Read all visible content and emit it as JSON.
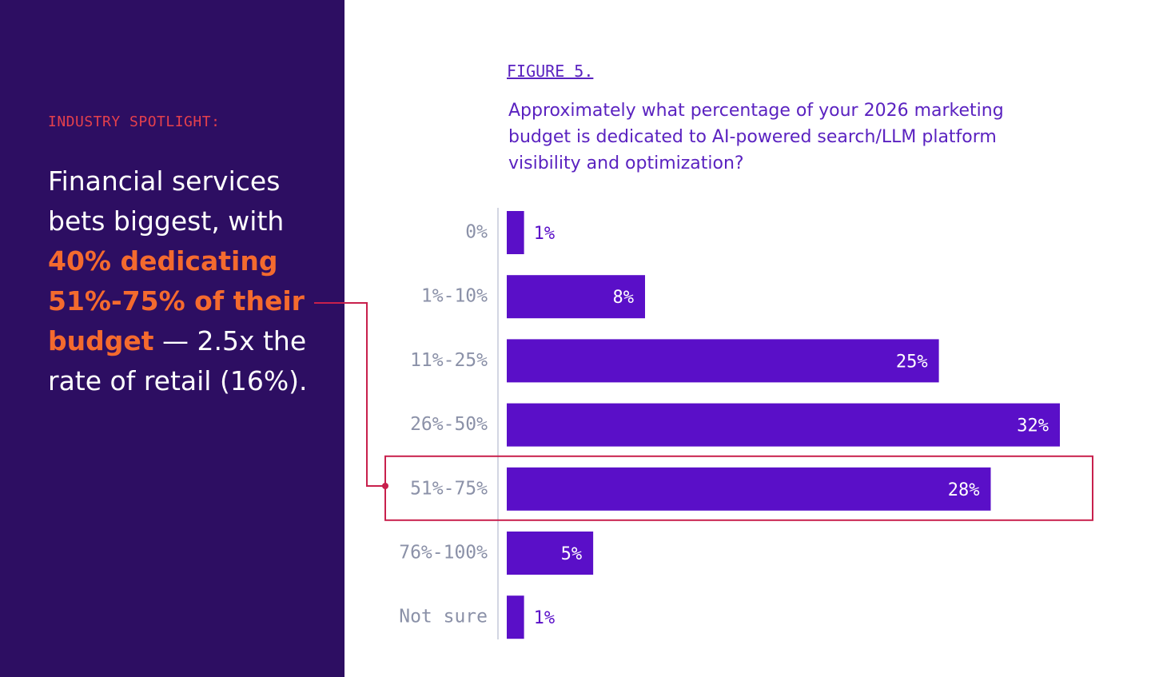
{
  "spotlight": {
    "label": "INDUSTRY SPOTLIGHT:",
    "text": [
      "Financial services bets biggest, with ",
      "40% dedicating 51%-75% of their budget",
      " — 2.5x the rate of retail (16%)."
    ]
  },
  "chart_data": {
    "type": "bar",
    "orientation": "horizontal",
    "figure_label": "FIGURE 5.",
    "title": "Approximately what percentage of your 2026 marketing budget is dedicated to AI-powered search/LLM platform visibility and optimization?",
    "categories": [
      "0%",
      "1%-10%",
      "11%-25%",
      "26%-50%",
      "51%-75%",
      "76%-100%",
      "Not sure"
    ],
    "values": [
      1,
      8,
      25,
      32,
      28,
      5,
      1
    ],
    "value_labels": [
      "1%",
      "8%",
      "25%",
      "32%",
      "28%",
      "5%",
      "1%"
    ],
    "color": "#5a0fc8",
    "highlighted_category": 4
  }
}
